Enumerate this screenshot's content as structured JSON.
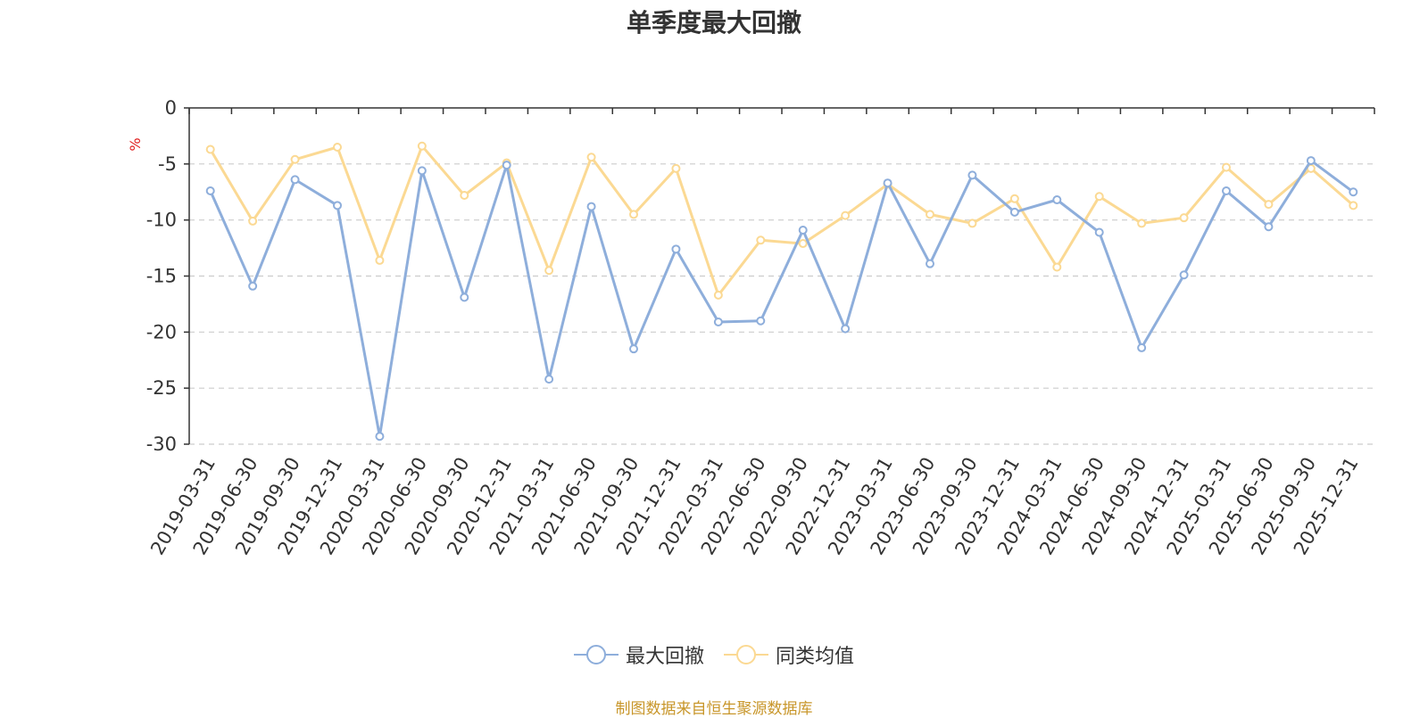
{
  "chart_data": {
    "type": "line",
    "title": "单季度最大回撤",
    "ylabel": "%",
    "ylim": [
      -30,
      0
    ],
    "yticks": [
      0,
      -5,
      -10,
      -15,
      -20,
      -25,
      -30
    ],
    "grid": true,
    "legend_position": "bottom-center",
    "categories": [
      "2019-03-31",
      "2019-06-30",
      "2019-09-30",
      "2019-12-31",
      "2020-03-31",
      "2020-06-30",
      "2020-09-30",
      "2020-12-31",
      "2021-03-31",
      "2021-06-30",
      "2021-09-30",
      "2021-12-31",
      "2022-03-31",
      "2022-06-30",
      "2022-09-30",
      "2022-12-31",
      "2023-03-31",
      "2023-06-30",
      "2023-09-30",
      "2023-12-31",
      "2024-03-31",
      "2024-06-30",
      "2024-09-30",
      "2024-12-31",
      "2025-03-31",
      "2025-06-30",
      "2025-09-30",
      "2025-12-31"
    ],
    "series": [
      {
        "name": "最大回撤",
        "color": "#8eaedb",
        "values": [
          -7.4,
          -15.9,
          -6.4,
          -8.7,
          -29.3,
          -5.6,
          -16.9,
          -5.1,
          -24.2,
          -8.8,
          -21.5,
          -12.6,
          -19.1,
          -19.0,
          -10.9,
          -19.7,
          -6.7,
          -13.9,
          -6.0,
          -9.3,
          -8.2,
          -11.1,
          -21.4,
          -14.9,
          -7.4,
          -10.6,
          -4.7,
          -7.5
        ]
      },
      {
        "name": "同类均值",
        "color": "#fbd993",
        "values": [
          -3.7,
          -10.1,
          -4.6,
          -3.5,
          -13.6,
          -3.4,
          -7.8,
          -4.9,
          -14.5,
          -4.4,
          -9.5,
          -5.4,
          -16.7,
          -11.8,
          -12.1,
          -9.6,
          -6.8,
          -9.5,
          -10.3,
          -8.1,
          -14.2,
          -7.9,
          -10.3,
          -9.8,
          -5.3,
          -8.6,
          -5.4,
          -8.7
        ]
      }
    ]
  },
  "source_note": "制图数据来自恒生聚源数据库"
}
